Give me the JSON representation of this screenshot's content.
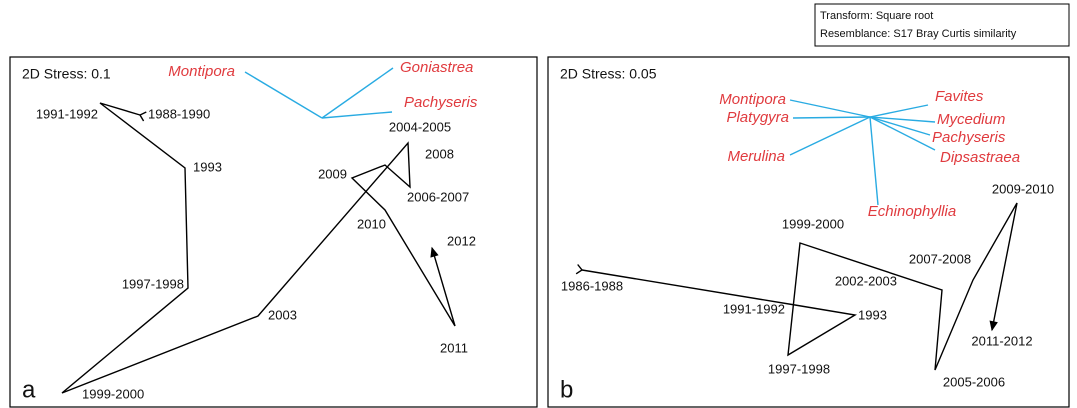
{
  "notes": [
    "Transform: Square root",
    "Resemblance: S17 Bray Curtis similarity"
  ],
  "chart_data": [
    {
      "type": "ordination",
      "panel": "a",
      "stress": "2D Stress: 0.1",
      "xlim": [
        0,
        527
      ],
      "ylim": [
        0,
        350
      ],
      "trajectory": {
        "labels": [
          "1988-1990",
          "1991-1992",
          "1993",
          "1997-1998",
          "1999-2000",
          "2003",
          "2004-2005",
          "2006-2007",
          "2008",
          "2009",
          "2010",
          "2011",
          "2012"
        ],
        "x": [
          130,
          90,
          175,
          178,
          52,
          248,
          398,
          400,
          375,
          342,
          375,
          445,
          422
        ],
        "y": [
          292,
          304,
          239,
          119,
          14,
          91,
          264,
          220,
          242,
          229,
          197,
          81,
          159
        ]
      },
      "vectors": {
        "origin": [
          312,
          289
        ],
        "labels": [
          "Montipora",
          "Goniastrea",
          "Pachyseris"
        ],
        "x": [
          235,
          383,
          382
        ],
        "y": [
          335,
          339,
          295
        ]
      }
    },
    {
      "type": "ordination",
      "panel": "b",
      "stress": "2D Stress: 0.05",
      "xlim": [
        0,
        521
      ],
      "ylim": [
        0,
        350
      ],
      "trajectory": {
        "labels": [
          "1986-1988",
          "1991-1992",
          "1993",
          "1997-1998",
          "1999-2000",
          "2002-2003",
          "2005-2006",
          "2007-2008",
          "2009-2010",
          "2011-2012"
        ],
        "x": [
          34,
          247,
          307,
          240,
          252,
          394,
          387,
          425,
          469,
          444
        ],
        "y": [
          137,
          102,
          92,
          52,
          164,
          117,
          37,
          127,
          204,
          77
        ]
      },
      "vectors": {
        "origin": [
          322,
          290
        ],
        "labels": [
          "Montipora",
          "Platygyra",
          "Merulina",
          "Favites",
          "Mycedium",
          "Pachyseris",
          "Dipsastraea",
          "Echinophyllia"
        ],
        "x": [
          242,
          245,
          242,
          380,
          387,
          382,
          387,
          330
        ],
        "y": [
          307,
          289,
          252,
          302,
          285,
          272,
          257,
          202
        ]
      }
    }
  ]
}
